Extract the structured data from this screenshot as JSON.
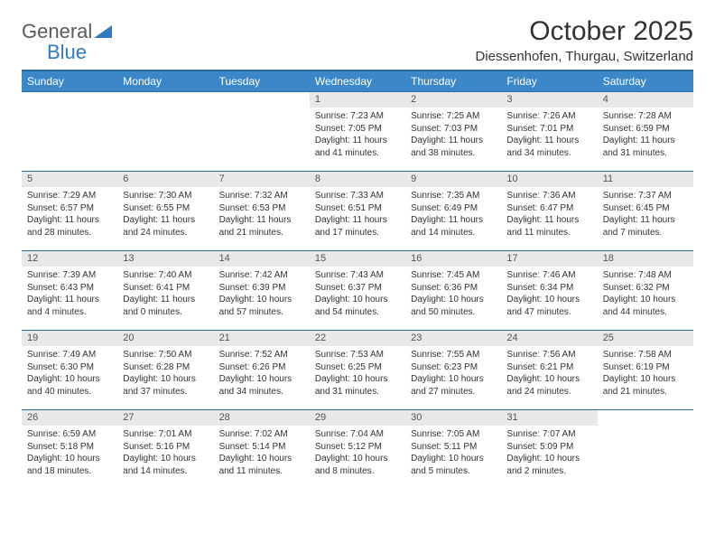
{
  "brand": {
    "word1": "General",
    "word2": "Blue"
  },
  "colors": {
    "header_bg": "#3b87c8",
    "header_border": "#2b6ca3",
    "daynum_bg": "#e8e8e8",
    "text": "#333333",
    "brand_gray": "#5a5a5a",
    "brand_blue": "#2f7ac0"
  },
  "title": "October 2025",
  "location": "Diessenhofen, Thurgau, Switzerland",
  "day_headers": [
    "Sunday",
    "Monday",
    "Tuesday",
    "Wednesday",
    "Thursday",
    "Friday",
    "Saturday"
  ],
  "weeks": [
    [
      null,
      null,
      null,
      {
        "n": "1",
        "sr": "7:23 AM",
        "ss": "7:05 PM",
        "dl": "11 hours and 41 minutes."
      },
      {
        "n": "2",
        "sr": "7:25 AM",
        "ss": "7:03 PM",
        "dl": "11 hours and 38 minutes."
      },
      {
        "n": "3",
        "sr": "7:26 AM",
        "ss": "7:01 PM",
        "dl": "11 hours and 34 minutes."
      },
      {
        "n": "4",
        "sr": "7:28 AM",
        "ss": "6:59 PM",
        "dl": "11 hours and 31 minutes."
      }
    ],
    [
      {
        "n": "5",
        "sr": "7:29 AM",
        "ss": "6:57 PM",
        "dl": "11 hours and 28 minutes."
      },
      {
        "n": "6",
        "sr": "7:30 AM",
        "ss": "6:55 PM",
        "dl": "11 hours and 24 minutes."
      },
      {
        "n": "7",
        "sr": "7:32 AM",
        "ss": "6:53 PM",
        "dl": "11 hours and 21 minutes."
      },
      {
        "n": "8",
        "sr": "7:33 AM",
        "ss": "6:51 PM",
        "dl": "11 hours and 17 minutes."
      },
      {
        "n": "9",
        "sr": "7:35 AM",
        "ss": "6:49 PM",
        "dl": "11 hours and 14 minutes."
      },
      {
        "n": "10",
        "sr": "7:36 AM",
        "ss": "6:47 PM",
        "dl": "11 hours and 11 minutes."
      },
      {
        "n": "11",
        "sr": "7:37 AM",
        "ss": "6:45 PM",
        "dl": "11 hours and 7 minutes."
      }
    ],
    [
      {
        "n": "12",
        "sr": "7:39 AM",
        "ss": "6:43 PM",
        "dl": "11 hours and 4 minutes."
      },
      {
        "n": "13",
        "sr": "7:40 AM",
        "ss": "6:41 PM",
        "dl": "11 hours and 0 minutes."
      },
      {
        "n": "14",
        "sr": "7:42 AM",
        "ss": "6:39 PM",
        "dl": "10 hours and 57 minutes."
      },
      {
        "n": "15",
        "sr": "7:43 AM",
        "ss": "6:37 PM",
        "dl": "10 hours and 54 minutes."
      },
      {
        "n": "16",
        "sr": "7:45 AM",
        "ss": "6:36 PM",
        "dl": "10 hours and 50 minutes."
      },
      {
        "n": "17",
        "sr": "7:46 AM",
        "ss": "6:34 PM",
        "dl": "10 hours and 47 minutes."
      },
      {
        "n": "18",
        "sr": "7:48 AM",
        "ss": "6:32 PM",
        "dl": "10 hours and 44 minutes."
      }
    ],
    [
      {
        "n": "19",
        "sr": "7:49 AM",
        "ss": "6:30 PM",
        "dl": "10 hours and 40 minutes."
      },
      {
        "n": "20",
        "sr": "7:50 AM",
        "ss": "6:28 PM",
        "dl": "10 hours and 37 minutes."
      },
      {
        "n": "21",
        "sr": "7:52 AM",
        "ss": "6:26 PM",
        "dl": "10 hours and 34 minutes."
      },
      {
        "n": "22",
        "sr": "7:53 AM",
        "ss": "6:25 PM",
        "dl": "10 hours and 31 minutes."
      },
      {
        "n": "23",
        "sr": "7:55 AM",
        "ss": "6:23 PM",
        "dl": "10 hours and 27 minutes."
      },
      {
        "n": "24",
        "sr": "7:56 AM",
        "ss": "6:21 PM",
        "dl": "10 hours and 24 minutes."
      },
      {
        "n": "25",
        "sr": "7:58 AM",
        "ss": "6:19 PM",
        "dl": "10 hours and 21 minutes."
      }
    ],
    [
      {
        "n": "26",
        "sr": "6:59 AM",
        "ss": "5:18 PM",
        "dl": "10 hours and 18 minutes."
      },
      {
        "n": "27",
        "sr": "7:01 AM",
        "ss": "5:16 PM",
        "dl": "10 hours and 14 minutes."
      },
      {
        "n": "28",
        "sr": "7:02 AM",
        "ss": "5:14 PM",
        "dl": "10 hours and 11 minutes."
      },
      {
        "n": "29",
        "sr": "7:04 AM",
        "ss": "5:12 PM",
        "dl": "10 hours and 8 minutes."
      },
      {
        "n": "30",
        "sr": "7:05 AM",
        "ss": "5:11 PM",
        "dl": "10 hours and 5 minutes."
      },
      {
        "n": "31",
        "sr": "7:07 AM",
        "ss": "5:09 PM",
        "dl": "10 hours and 2 minutes."
      },
      null
    ]
  ],
  "labels": {
    "sunrise": "Sunrise: ",
    "sunset": "Sunset: ",
    "daylight": "Daylight: "
  }
}
